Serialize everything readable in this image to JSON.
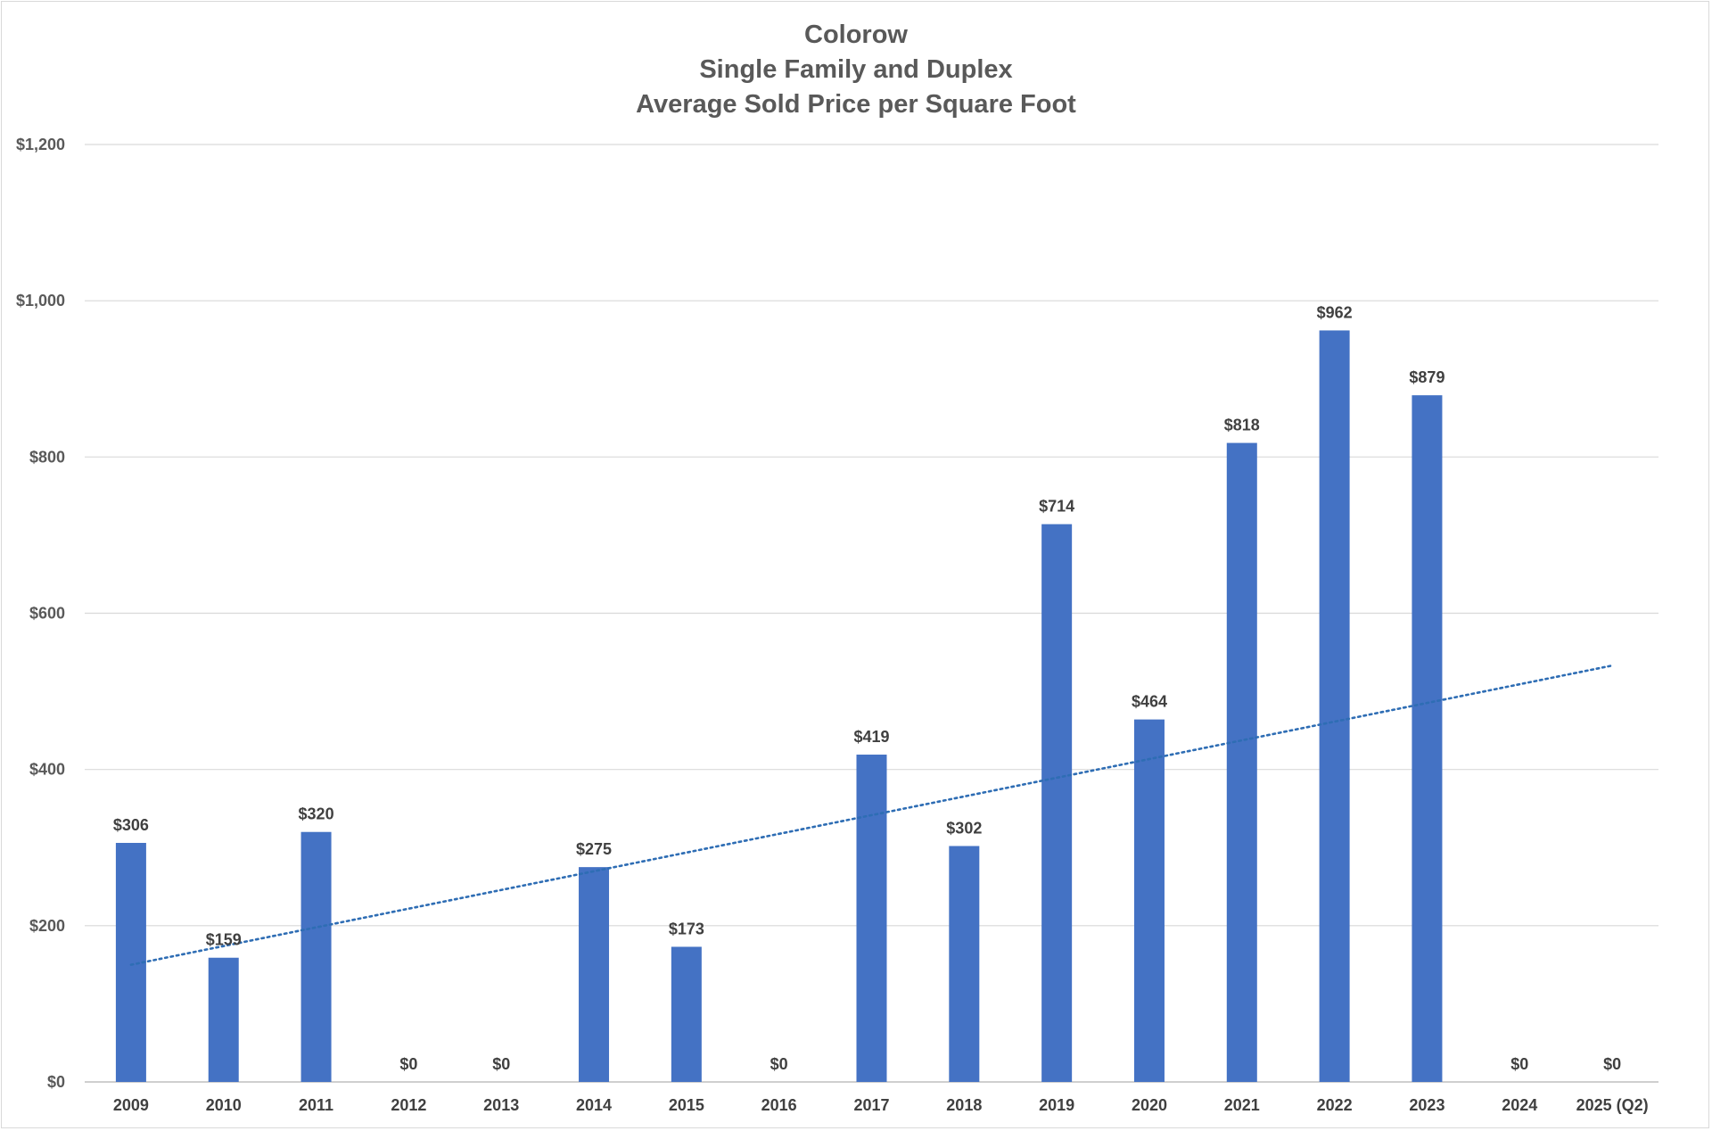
{
  "chart_data": {
    "type": "bar",
    "title_lines": [
      "Colorow",
      "Single Family and Duplex",
      "Average Sold Price per Square Foot"
    ],
    "categories": [
      "2009",
      "2010",
      "2011",
      "2012",
      "2013",
      "2014",
      "2015",
      "2016",
      "2017",
      "2018",
      "2019",
      "2020",
      "2021",
      "2022",
      "2023",
      "2024",
      "2025 (Q2)"
    ],
    "values": [
      306,
      159,
      320,
      0,
      0,
      275,
      173,
      0,
      419,
      302,
      714,
      464,
      818,
      962,
      879,
      0,
      0
    ],
    "data_labels": [
      "$306",
      "$159",
      "$320",
      "$0",
      "$0",
      "$275",
      "$173",
      "$0",
      "$419",
      "$302",
      "$714",
      "$464",
      "$818",
      "$962",
      "$879",
      "$0",
      "$0"
    ],
    "yticks": [
      0,
      200,
      400,
      600,
      800,
      1000,
      1200
    ],
    "ytick_labels": [
      "$0",
      "$200",
      "$400",
      "$600",
      "$800",
      "$1,000",
      "$1,200"
    ],
    "ylim": [
      0,
      1200
    ],
    "trendline": {
      "type": "linear",
      "style": "dotted",
      "start_value": 150,
      "end_value": 533
    },
    "grid": true,
    "legend": "none",
    "colors": {
      "bar": "#4472C4",
      "trendline": "#2E6DB4"
    }
  }
}
